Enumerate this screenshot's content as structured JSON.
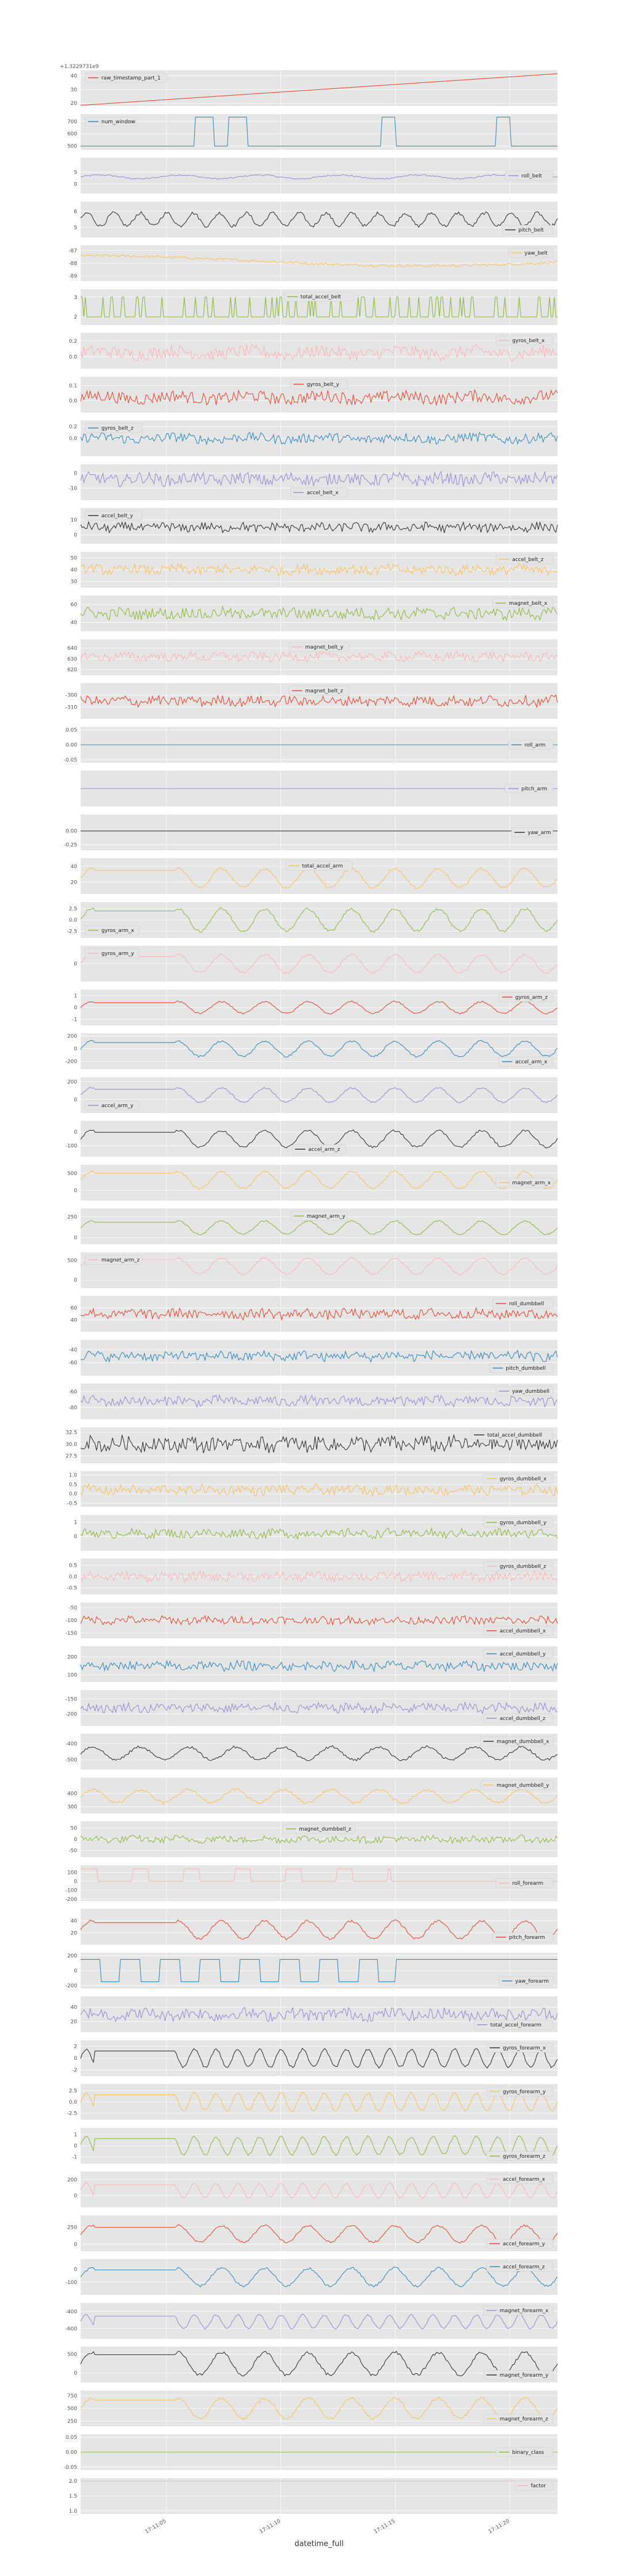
{
  "chart_data": {
    "type": "line",
    "xlabel": "datetime_full",
    "x_ticks": [
      "17:11:05",
      "17:11:10",
      "17:11:15",
      "17:11:20"
    ],
    "grid": true,
    "legend_placement": "inside each panel",
    "background": "#e5e5e5",
    "panels": [
      {
        "series": "raw_timestamp_part_1",
        "color": "#e24a33",
        "legend": "upper left",
        "offset": "+1.3229731e9",
        "yticks": [
          "20",
          "30",
          "40"
        ],
        "ylim": [
          18,
          44
        ],
        "shape": "linear",
        "from": 18.5,
        "to": 41.5
      },
      {
        "series": "num_window",
        "color": "#348abd",
        "legend": "upper left",
        "yticks": [
          "500",
          "600",
          "700"
        ],
        "ylim": [
          470,
          760
        ],
        "shape": "steps",
        "base": 500,
        "high": 735,
        "windows": [
          [
            0.24,
            0.28
          ],
          [
            0.31,
            0.35
          ],
          [
            0.63,
            0.66
          ],
          [
            0.87,
            0.9
          ]
        ]
      },
      {
        "series": "roll_belt",
        "color": "#988ed5",
        "legend": "right",
        "yticks": [
          "0",
          "5"
        ],
        "ylim": [
          -4,
          11
        ],
        "shape": "wave",
        "center": 3,
        "amp": 0.8,
        "noise": 0.3,
        "freq": 6
      },
      {
        "series": "pitch_belt",
        "color": "#333333",
        "legend": "lower right",
        "yticks": [
          "5",
          "6"
        ],
        "ylim": [
          4.4,
          6.6
        ],
        "shape": "wave",
        "center": 5.5,
        "amp": 0.4,
        "noise": 0.1,
        "freq": 18
      },
      {
        "series": "yaw_belt",
        "color": "#fbc15e",
        "legend": "upper right",
        "yticks": [
          "-87",
          "-88",
          "-89"
        ],
        "ylim": [
          -89.4,
          -86.6
        ],
        "shape": "drift",
        "center": -87.8,
        "amp": 0.4,
        "noise": 0.1,
        "freq": 4
      },
      {
        "series": "total_accel_belt",
        "color": "#8eba42",
        "legend": "upper center",
        "yticks": [
          "2",
          "3"
        ],
        "ylim": [
          1.6,
          3.4
        ],
        "shape": "binary",
        "low": 2,
        "high": 3
      },
      {
        "series": "gyros_belt_x",
        "color": "#ffb5b8",
        "legend": "upper right",
        "yticks": [
          "0.2",
          "0.0"
        ],
        "ylim": [
          -0.15,
          0.3
        ],
        "shape": "noise",
        "center": 0.05,
        "amp": 0.08,
        "freq": 40
      },
      {
        "series": "gyros_belt_y",
        "color": "#e24a33",
        "legend": "upper center",
        "yticks": [
          "0.1",
          "0.0"
        ],
        "ylim": [
          -0.08,
          0.16
        ],
        "shape": "noise",
        "center": 0.02,
        "amp": 0.04,
        "freq": 40
      },
      {
        "series": "gyros_belt_z",
        "color": "#348abd",
        "legend": "upper left",
        "yticks": [
          "0.2",
          "0.0"
        ],
        "ylim": [
          -0.3,
          0.3
        ],
        "shape": "noise",
        "center": 0.0,
        "amp": 0.08,
        "freq": 40
      },
      {
        "series": "accel_belt_x",
        "color": "#988ed5",
        "legend": "lower center",
        "yticks": [
          "0",
          "-10"
        ],
        "ylim": [
          -18,
          6
        ],
        "shape": "noise",
        "center": -4,
        "amp": 4,
        "freq": 60
      },
      {
        "series": "accel_belt_y",
        "color": "#333333",
        "legend": "upper left",
        "yticks": [
          "10",
          "0"
        ],
        "ylim": [
          -6,
          18
        ],
        "shape": "noise",
        "center": 5,
        "amp": 3,
        "freq": 80
      },
      {
        "series": "accel_belt_z",
        "color": "#fbc15e",
        "legend": "upper right",
        "yticks": [
          "50",
          "40",
          "30"
        ],
        "ylim": [
          25,
          55
        ],
        "shape": "noise",
        "center": 40,
        "amp": 4,
        "freq": 70
      },
      {
        "series": "magnet_belt_x",
        "color": "#8eba42",
        "legend": "upper right",
        "yticks": [
          "60",
          "40"
        ],
        "ylim": [
          30,
          70
        ],
        "shape": "noise",
        "center": 50,
        "amp": 6,
        "freq": 90
      },
      {
        "series": "magnet_belt_y",
        "color": "#ffb5b8",
        "legend": "upper center",
        "yticks": [
          "640",
          "630",
          "620"
        ],
        "ylim": [
          615,
          648
        ],
        "shape": "noise",
        "center": 632,
        "amp": 4,
        "freq": 90
      },
      {
        "series": "magnet_belt_z",
        "color": "#e24a33",
        "legend": "upper center",
        "yticks": [
          "-300",
          "-310"
        ],
        "ylim": [
          -320,
          -290
        ],
        "shape": "noise",
        "center": -305,
        "amp": 4,
        "freq": 90
      },
      {
        "series": "roll_arm",
        "color": "#348abd",
        "legend": "right",
        "yticks": [
          "0.05",
          "0.00",
          "-0.05"
        ],
        "ylim": [
          -0.06,
          0.06
        ],
        "shape": "flat",
        "center": 0
      },
      {
        "series": "pitch_arm",
        "color": "#988ed5",
        "legend": "right",
        "yticks": [],
        "ylim": [
          -1,
          1
        ],
        "shape": "flat",
        "center": 0
      },
      {
        "series": "yaw_arm",
        "color": "#333333",
        "legend": "right",
        "yticks": [
          "0.00",
          "-0.25"
        ],
        "ylim": [
          -0.35,
          0.3
        ],
        "shape": "flat",
        "center": 0
      },
      {
        "series": "total_accel_arm",
        "color": "#fbc15e",
        "legend": "upper center",
        "yticks": [
          "40",
          "20"
        ],
        "ylim": [
          5,
          50
        ],
        "shape": "periodic",
        "center": 25,
        "amp": 12,
        "freq": 11
      },
      {
        "series": "gyros_arm_x",
        "color": "#8eba42",
        "legend": "lower left",
        "yticks": [
          "2.5",
          "0.0",
          "-2.5"
        ],
        "ylim": [
          -4,
          4
        ],
        "shape": "periodic",
        "center": 0,
        "amp": 2.5,
        "freq": 11
      },
      {
        "series": "gyros_arm_y",
        "color": "#ffb5b8",
        "legend": "upper left",
        "yticks": [
          "0"
        ],
        "ylim": [
          -2,
          2
        ],
        "shape": "periodic",
        "center": 0,
        "amp": 1,
        "freq": 11
      },
      {
        "series": "gyros_arm_z",
        "color": "#e24a33",
        "legend": "upper right",
        "yticks": [
          "1",
          "0",
          "-1"
        ],
        "ylim": [
          -1.5,
          1.5
        ],
        "shape": "periodic",
        "center": 0,
        "amp": 0.5,
        "freq": 11
      },
      {
        "series": "accel_arm_x",
        "color": "#348abd",
        "legend": "lower right",
        "yticks": [
          "200",
          "0",
          "-200"
        ],
        "ylim": [
          -320,
          240
        ],
        "shape": "periodic",
        "center": 0,
        "amp": 120,
        "freq": 11
      },
      {
        "series": "accel_arm_y",
        "color": "#988ed5",
        "legend": "lower left",
        "yticks": [
          "200",
          "0"
        ],
        "ylim": [
          -150,
          250
        ],
        "shape": "periodic",
        "center": 50,
        "amp": 80,
        "freq": 11
      },
      {
        "series": "accel_arm_z",
        "color": "#333333",
        "legend": "lower center",
        "yticks": [
          "0",
          "-100"
        ],
        "ylim": [
          -180,
          80
        ],
        "shape": "periodic",
        "center": -50,
        "amp": 60,
        "freq": 11
      },
      {
        "series": "magnet_arm_x",
        "color": "#fbc15e",
        "legend": "right",
        "yticks": [
          "500",
          "0"
        ],
        "ylim": [
          -300,
          750
        ],
        "shape": "periodic",
        "center": 300,
        "amp": 250,
        "freq": 11
      },
      {
        "series": "magnet_arm_y",
        "color": "#8eba42",
        "legend": "upper center",
        "yticks": [
          "250",
          "0"
        ],
        "ylim": [
          -80,
          350
        ],
        "shape": "periodic",
        "center": 120,
        "amp": 80,
        "freq": 11
      },
      {
        "series": "magnet_arm_z",
        "color": "#ffb5b8",
        "legend": "upper left",
        "yticks": [
          "500",
          "0"
        ],
        "ylim": [
          -200,
          700
        ],
        "shape": "periodic",
        "center": 350,
        "amp": 200,
        "freq": 11
      },
      {
        "series": "roll_dumbbell",
        "color": "#e24a33",
        "legend": "upper right",
        "yticks": [
          "60",
          "40"
        ],
        "ylim": [
          20,
          80
        ],
        "shape": "noise",
        "center": 50,
        "amp": 8,
        "freq": 70
      },
      {
        "series": "pitch_dumbbell",
        "color": "#348abd",
        "legend": "lower right",
        "yticks": [
          "-40",
          "-60"
        ],
        "ylim": [
          -80,
          -25
        ],
        "shape": "noise",
        "center": -50,
        "amp": 7,
        "freq": 70
      },
      {
        "series": "yaw_dumbbell",
        "color": "#988ed5",
        "legend": "upper right",
        "yticks": [
          "-60",
          "-80"
        ],
        "ylim": [
          -95,
          -50
        ],
        "shape": "noise",
        "center": -72,
        "amp": 6,
        "freq": 70
      },
      {
        "series": "total_accel_dumbbell",
        "color": "#333333",
        "legend": "upper right",
        "yticks": [
          "32.5",
          "30.0",
          "27.5"
        ],
        "ylim": [
          26,
          33.5
        ],
        "shape": "noise",
        "center": 30,
        "amp": 1.5,
        "freq": 90
      },
      {
        "series": "gyros_dumbbell_x",
        "color": "#fbc15e",
        "legend": "upper right",
        "yticks": [
          "1.0",
          "0.5",
          "0.0",
          "-0.5"
        ],
        "ylim": [
          -0.7,
          1.2
        ],
        "shape": "noise",
        "center": 0.2,
        "amp": 0.25,
        "freq": 80
      },
      {
        "series": "gyros_dumbbell_y",
        "color": "#8eba42",
        "legend": "upper right",
        "yticks": [
          "1",
          "0"
        ],
        "ylim": [
          -1,
          1.5
        ],
        "shape": "noise",
        "center": 0.2,
        "amp": 0.3,
        "freq": 80
      },
      {
        "series": "gyros_dumbbell_z",
        "color": "#ffb5b8",
        "legend": "upper right",
        "yticks": [
          "0.5",
          "0.0",
          "-0.5"
        ],
        "ylim": [
          -0.8,
          0.8
        ],
        "shape": "noise",
        "center": 0,
        "amp": 0.2,
        "freq": 80
      },
      {
        "series": "accel_dumbbell_x",
        "color": "#e24a33",
        "legend": "lower right",
        "yticks": [
          "-50",
          "-100",
          "-150"
        ],
        "ylim": [
          -170,
          -30
        ],
        "shape": "noise",
        "center": -100,
        "amp": 15,
        "freq": 80
      },
      {
        "series": "accel_dumbbell_y",
        "color": "#348abd",
        "legend": "upper right",
        "yticks": [
          "200",
          "100"
        ],
        "ylim": [
          60,
          260
        ],
        "shape": "noise",
        "center": 150,
        "amp": 25,
        "freq": 80
      },
      {
        "series": "accel_dumbbell_z",
        "color": "#988ed5",
        "legend": "lower right",
        "yticks": [
          "-150",
          "-200"
        ],
        "ylim": [
          -240,
          -120
        ],
        "shape": "noise",
        "center": -180,
        "amp": 15,
        "freq": 80
      },
      {
        "series": "magnet_dumbbell_x",
        "color": "#333333",
        "legend": "upper right",
        "yticks": [
          "-400",
          "-500"
        ],
        "ylim": [
          -560,
          -340
        ],
        "shape": "wave",
        "center": -460,
        "amp": 40,
        "noise": 8,
        "freq": 10
      },
      {
        "series": "magnet_dumbbell_y",
        "color": "#fbc15e",
        "legend": "upper right",
        "yticks": [
          "400",
          "300"
        ],
        "ylim": [
          250,
          520
        ],
        "shape": "wave",
        "center": 380,
        "amp": 50,
        "noise": 10,
        "freq": 10
      },
      {
        "series": "magnet_dumbbell_z",
        "color": "#8eba42",
        "legend": "upper center",
        "yticks": [
          "50",
          "0",
          "-50"
        ],
        "ylim": [
          -80,
          80
        ],
        "shape": "noise",
        "center": 0,
        "amp": 15,
        "freq": 70
      },
      {
        "series": "roll_forearm",
        "color": "#ffb5b8",
        "legend": "right",
        "yticks": [
          "100",
          "0",
          "-100",
          "-200"
        ],
        "ylim": [
          -220,
          180
        ],
        "shape": "spikes",
        "center": 0,
        "high": 140,
        "low": -180
      },
      {
        "series": "pitch_forearm",
        "color": "#e24a33",
        "legend": "lower right",
        "yticks": [
          "40",
          "20"
        ],
        "ylim": [
          0,
          60
        ],
        "shape": "periodic",
        "center": 25,
        "amp": 15,
        "freq": 11
      },
      {
        "series": "yaw_forearm",
        "color": "#348abd",
        "legend": "lower right",
        "yticks": [
          "200",
          "0",
          "-200"
        ],
        "ylim": [
          -240,
          240
        ],
        "shape": "square",
        "high": 150,
        "low": -150,
        "freq": 12
      },
      {
        "series": "total_accel_forearm",
        "color": "#988ed5",
        "legend": "lower right",
        "yticks": [
          "40",
          "20"
        ],
        "ylim": [
          5,
          55
        ],
        "shape": "noise",
        "center": 30,
        "amp": 8,
        "freq": 60
      },
      {
        "series": "gyros_forearm_x",
        "color": "#333333",
        "legend": "upper right",
        "yticks": [
          "2",
          "0",
          "-2"
        ],
        "ylim": [
          -3,
          3
        ],
        "shape": "periodic",
        "center": 0,
        "amp": 1.5,
        "freq": 22
      },
      {
        "series": "gyros_forearm_y",
        "color": "#fbc15e",
        "legend": "upper right",
        "yticks": [
          "2.5",
          "0.0",
          "-2.5"
        ],
        "ylim": [
          -4,
          4
        ],
        "shape": "periodic",
        "center": 0,
        "amp": 2,
        "freq": 22
      },
      {
        "series": "gyros_forearm_z",
        "color": "#8eba42",
        "legend": "lower right",
        "yticks": [
          "1",
          "0",
          "-1"
        ],
        "ylim": [
          -1.6,
          1.6
        ],
        "shape": "periodic",
        "center": 0,
        "amp": 0.8,
        "freq": 22
      },
      {
        "series": "accel_forearm_x",
        "color": "#ffb5b8",
        "legend": "upper right",
        "yticks": [
          "200",
          "0"
        ],
        "ylim": [
          -150,
          300
        ],
        "shape": "periodic",
        "center": 60,
        "amp": 90,
        "freq": 22
      },
      {
        "series": "accel_forearm_y",
        "color": "#e24a33",
        "legend": "lower right",
        "yticks": [
          "250",
          "0"
        ],
        "ylim": [
          -100,
          420
        ],
        "shape": "periodic",
        "center": 150,
        "amp": 120,
        "freq": 11
      },
      {
        "series": "accel_forearm_z",
        "color": "#348abd",
        "legend": "upper right",
        "yticks": [
          "0",
          "-100"
        ],
        "ylim": [
          -200,
          80
        ],
        "shape": "periodic",
        "center": -60,
        "amp": 70,
        "freq": 11
      },
      {
        "series": "magnet_forearm_x",
        "color": "#988ed5",
        "legend": "upper right",
        "yticks": [
          "-400",
          "-600"
        ],
        "ylim": [
          -720,
          -300
        ],
        "shape": "periodic",
        "center": -520,
        "amp": 80,
        "freq": 22
      },
      {
        "series": "magnet_forearm_y",
        "color": "#333333",
        "legend": "lower right",
        "yticks": [
          "500",
          "0"
        ],
        "ylim": [
          -250,
          700
        ],
        "shape": "periodic",
        "center": 250,
        "amp": 300,
        "freq": 11
      },
      {
        "series": "magnet_forearm_z",
        "color": "#fbc15e",
        "legend": "lower right",
        "yticks": [
          "750",
          "500",
          "250"
        ],
        "ylim": [
          150,
          850
        ],
        "shape": "periodic",
        "center": 500,
        "amp": 200,
        "freq": 11
      },
      {
        "series": "binary_class",
        "color": "#8eba42",
        "legend": "right",
        "yticks": [
          "0.05",
          "0.00",
          "-0.05"
        ],
        "ylim": [
          -0.06,
          0.06
        ],
        "shape": "flat",
        "center": 0
      },
      {
        "series": "factor",
        "color": "#ffb5b8",
        "legend": "upper right",
        "yticks": [
          "2.0",
          "1.5",
          "1.0"
        ],
        "ylim": [
          0.9,
          2.1
        ],
        "shape": "flat",
        "center": 2
      }
    ]
  }
}
